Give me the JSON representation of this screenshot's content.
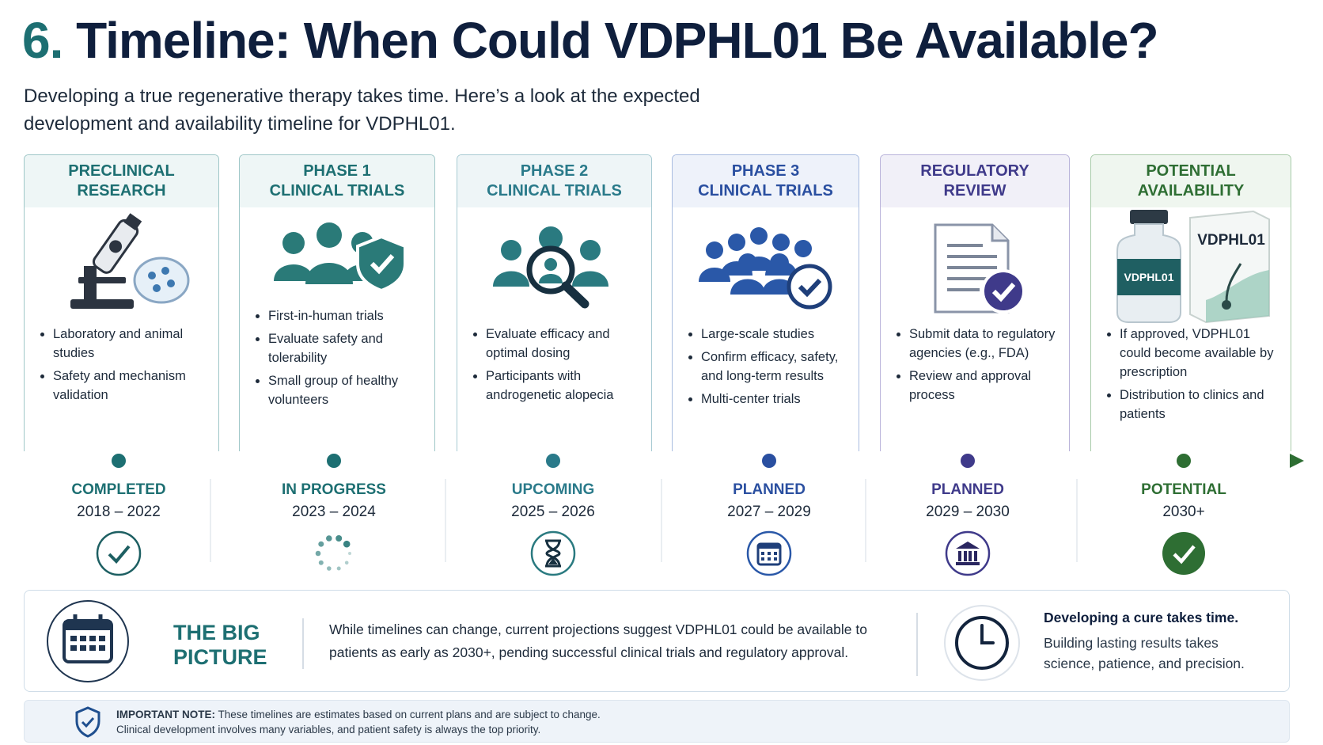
{
  "header": {
    "number": "6.",
    "title": "Timeline: When Could VDPHL01 Be Available?",
    "subtitle_lines": [
      "Developing a true regenerative therapy takes time. Here’s a look at the expected",
      "development and availability timeline for VDPHL01."
    ]
  },
  "stages": [
    {
      "title_lines": [
        "PRECLINICAL",
        "RESEARCH"
      ],
      "bullets": [
        "Laboratory and animal studies",
        "Safety and mechanism validation"
      ],
      "status": "COMPLETED",
      "years": "2018 – 2022"
    },
    {
      "title_lines": [
        "PHASE 1",
        "CLINICAL TRIALS"
      ],
      "bullets": [
        "First-in-human trials",
        "Evaluate safety and tolerability",
        "Small group of healthy volunteers"
      ],
      "status": "IN PROGRESS",
      "years": "2023 – 2024"
    },
    {
      "title_lines": [
        "PHASE 2",
        "CLINICAL TRIALS"
      ],
      "bullets": [
        "Evaluate efficacy and optimal dosing",
        "Participants with androgenetic alopecia"
      ],
      "status": "UPCOMING",
      "years": "2025 – 2026"
    },
    {
      "title_lines": [
        "PHASE 3",
        "CLINICAL TRIALS"
      ],
      "bullets": [
        "Large-scale studies",
        "Confirm efficacy, safety, and long-term results",
        "Multi-center trials"
      ],
      "status": "PLANNED",
      "years": "2027 – 2029"
    },
    {
      "title_lines": [
        "REGULATORY",
        "REVIEW"
      ],
      "bullets": [
        "Submit data to regulatory agencies (e.g., FDA)",
        "Review and approval process"
      ],
      "status": "PLANNED",
      "years": "2029 – 2030"
    },
    {
      "title_lines": [
        "POTENTIAL",
        "AVAILABILITY"
      ],
      "bullets": [
        "If approved, VDPHL01 could become available by prescription",
        "Distribution to clinics and patients"
      ],
      "status": "POTENTIAL",
      "years": "2030+",
      "box_label": "VDPHL01",
      "vial_label": "VDPHL01"
    }
  ],
  "big_picture": {
    "label_lines": [
      "THE BIG",
      "PICTURE"
    ],
    "text": "While timelines can change, current projections suggest VDPHL01 could be available to patients as early as 2030+, pending successful clinical trials and regulatory approval.",
    "aside_title": "Developing a cure takes time.",
    "aside_text": "Building lasting results takes science, patience, and precision."
  },
  "note": {
    "label": "IMPORTANT NOTE:",
    "lines": [
      "These timelines are estimates based on current plans and are subject to change.",
      "Clinical development involves many variables, and patient safety is always the top priority."
    ]
  }
}
